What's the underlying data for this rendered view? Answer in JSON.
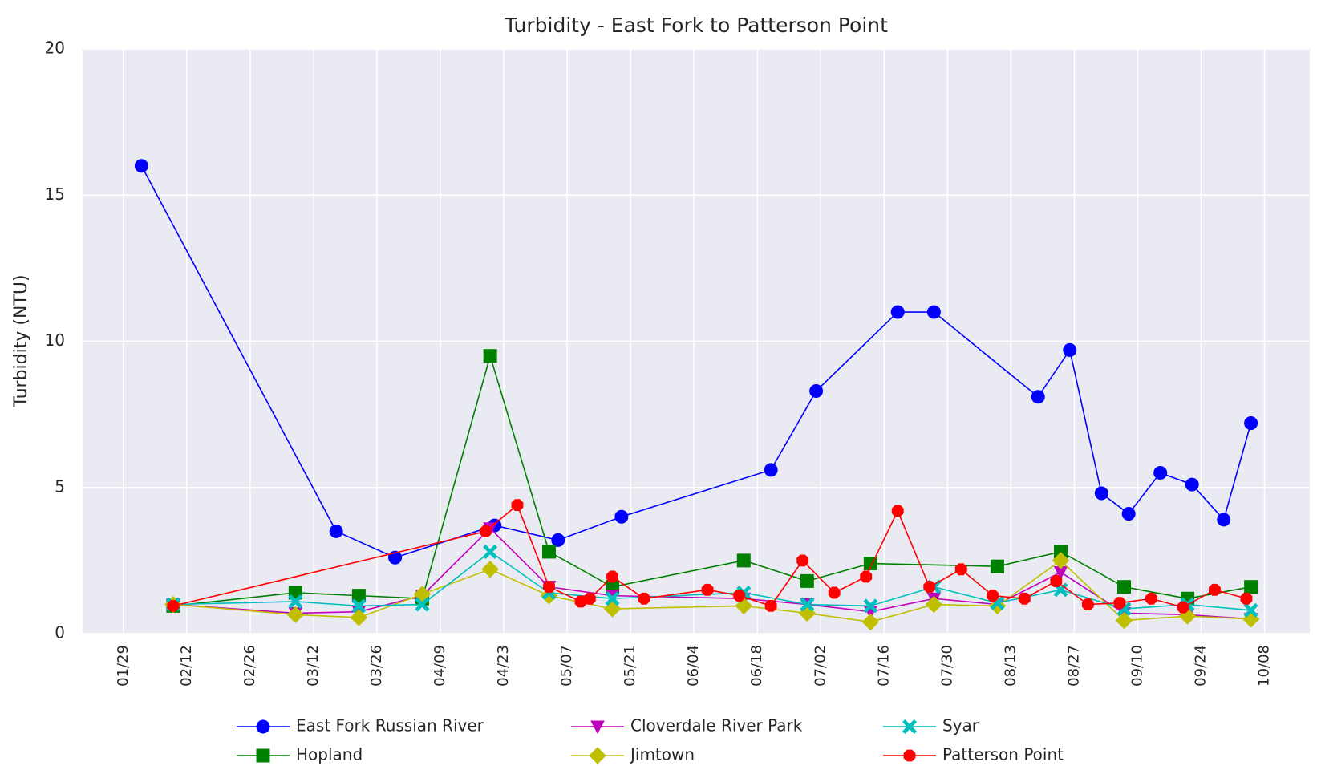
{
  "chart_data": {
    "type": "line",
    "title": "Turbidity - East Fork to Patterson Point",
    "ylabel": "Turbidity (NTU)",
    "xlim": [
      "01/20",
      "10/18"
    ],
    "xticks": [
      "01/29",
      "02/12",
      "02/26",
      "03/12",
      "03/26",
      "04/09",
      "04/23",
      "05/07",
      "05/21",
      "06/04",
      "06/18",
      "07/02",
      "07/16",
      "07/30",
      "08/13",
      "08/27",
      "09/10",
      "09/24",
      "10/08"
    ],
    "ylim": [
      0,
      20
    ],
    "yticks": [
      0,
      5,
      10,
      15,
      20
    ],
    "grid": true,
    "legend": "lower center",
    "series": [
      {
        "name": "East Fork Russian River",
        "color": "#0000ff",
        "marker": "o",
        "x": [
          "02/02",
          "03/17",
          "03/30",
          "04/21",
          "05/05",
          "05/19",
          "06/21",
          "07/01",
          "07/19",
          "07/27",
          "08/19",
          "08/26",
          "09/02",
          "09/08",
          "09/15",
          "09/22",
          "09/29",
          "10/05"
        ],
        "values": [
          16.0,
          3.5,
          2.6,
          3.7,
          3.2,
          4.0,
          5.6,
          8.3,
          11.0,
          11.0,
          8.1,
          9.7,
          4.8,
          4.1,
          5.5,
          5.1,
          3.9,
          7.2
        ]
      },
      {
        "name": "Hopland",
        "color": "#008000",
        "marker": "s",
        "x": [
          "02/09",
          "03/08",
          "03/22",
          "04/05",
          "04/20",
          "05/03",
          "05/17",
          "06/15",
          "06/29",
          "07/13",
          "08/10",
          "08/24",
          "09/07",
          "09/21",
          "10/05"
        ],
        "values": [
          0.95,
          1.4,
          1.3,
          1.2,
          9.5,
          2.8,
          1.6,
          2.5,
          1.8,
          2.4,
          2.3,
          2.8,
          1.6,
          1.2,
          1.6
        ]
      },
      {
        "name": "Cloverdale River Park",
        "color": "#bf00bf",
        "marker": "v",
        "x": [
          "02/09",
          "03/08",
          "03/22",
          "04/05",
          "04/20",
          "05/03",
          "05/17",
          "06/15",
          "06/29",
          "07/13",
          "07/27",
          "08/10",
          "08/24",
          "09/07",
          "09/21",
          "10/05"
        ],
        "values": [
          1.0,
          0.7,
          0.75,
          1.3,
          3.6,
          1.6,
          1.3,
          1.2,
          1.0,
          0.75,
          1.2,
          1.0,
          2.1,
          0.7,
          0.65,
          0.5
        ]
      },
      {
        "name": "Jimtown",
        "color": "#bfbf00",
        "marker": "D",
        "x": [
          "02/09",
          "03/08",
          "03/22",
          "04/05",
          "04/20",
          "05/03",
          "05/17",
          "06/15",
          "06/29",
          "07/13",
          "07/27",
          "08/10",
          "08/24",
          "09/07",
          "09/21",
          "10/05"
        ],
        "values": [
          1.0,
          0.65,
          0.55,
          1.35,
          2.2,
          1.3,
          0.85,
          0.95,
          0.7,
          0.4,
          1.0,
          0.95,
          2.5,
          0.45,
          0.6,
          0.5
        ]
      },
      {
        "name": "Syar",
        "color": "#00bfbf",
        "marker": "X",
        "x": [
          "02/09",
          "03/08",
          "03/22",
          "04/05",
          "04/20",
          "05/03",
          "05/17",
          "06/15",
          "06/29",
          "07/13",
          "07/27",
          "08/10",
          "08/24",
          "09/07",
          "09/21",
          "10/05"
        ],
        "values": [
          1.0,
          1.1,
          0.95,
          1.0,
          2.8,
          1.4,
          1.2,
          1.4,
          1.0,
          0.95,
          1.6,
          1.05,
          1.5,
          0.85,
          1.0,
          0.8
        ]
      },
      {
        "name": "Patterson Point",
        "color": "#ff0000",
        "marker": "8",
        "x": [
          "02/09",
          "04/19",
          "04/26",
          "05/03",
          "05/10",
          "05/12",
          "05/17",
          "05/24",
          "06/07",
          "06/14",
          "06/21",
          "06/28",
          "07/05",
          "07/12",
          "07/19",
          "07/26",
          "08/02",
          "08/09",
          "08/16",
          "08/23",
          "08/30",
          "09/06",
          "09/13",
          "09/20",
          "09/27",
          "10/04"
        ],
        "values": [
          0.95,
          3.5,
          4.4,
          1.6,
          1.1,
          1.2,
          1.95,
          1.2,
          1.5,
          1.3,
          0.95,
          2.5,
          1.4,
          1.95,
          4.2,
          1.6,
          2.2,
          1.3,
          1.2,
          1.8,
          1.0,
          1.05,
          1.2,
          0.9,
          1.5,
          1.2
        ]
      }
    ]
  }
}
